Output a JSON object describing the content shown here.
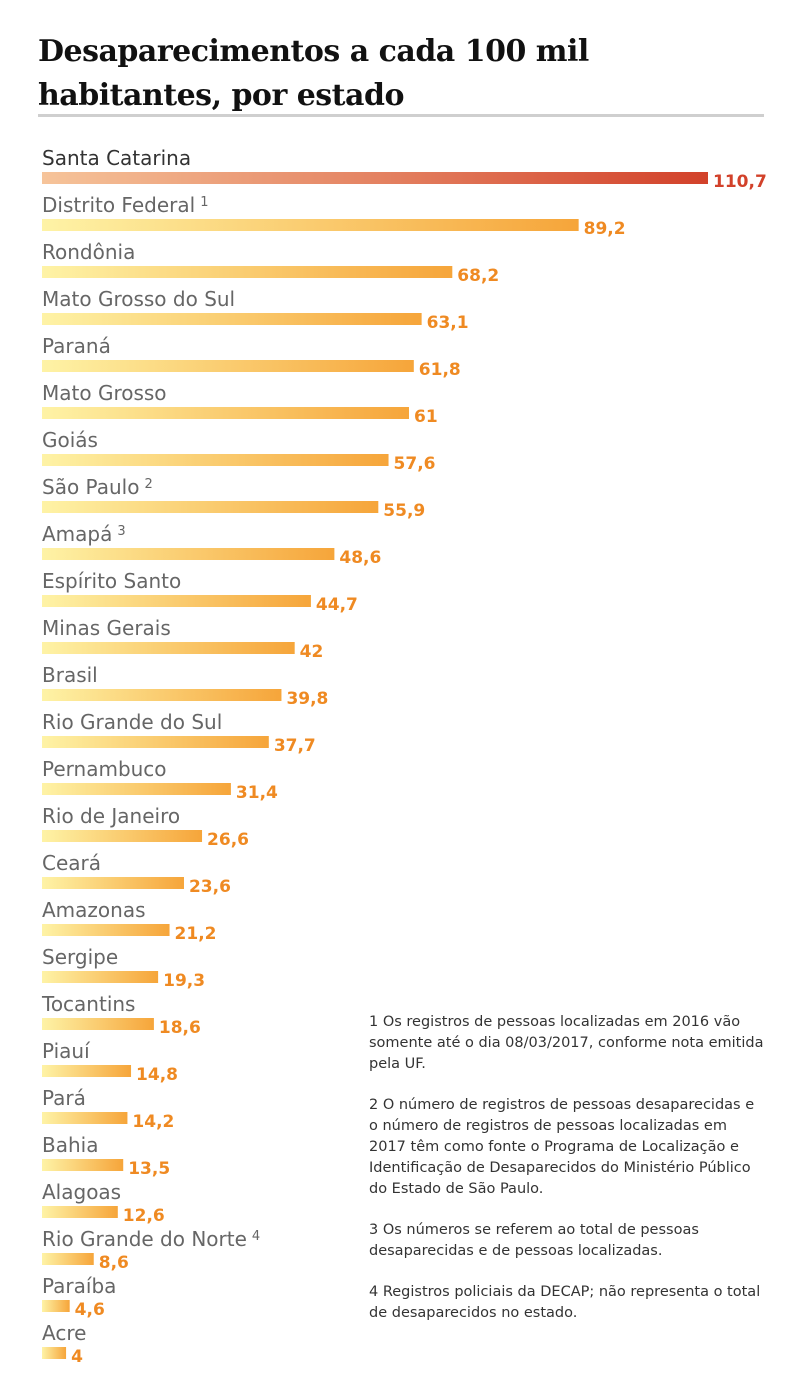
{
  "title": "Desaparecimentos a cada 100 mil habitantes, por estado",
  "colors": {
    "bar_start": "#fef3a6",
    "bar_end": "#f6a53a",
    "top_start": "#f6c49a",
    "top_end": "#d2412a",
    "value": "#ef8a22",
    "value_top": "#d2412a"
  },
  "notes": [
    "1 Os registros de pessoas localizadas em 2016 vão somente até o dia 08/03/2017, conforme nota emitida pela UF.",
    "2 O número de registros de pessoas desaparecidas e o número de registros de pessoas localizadas em 2017 têm como fonte o Programa de Localização e Identificação de Desaparecidos do Ministério Público do Estado de São Paulo.",
    "3 Os números se referem ao total de pessoas desaparecidas e de pessoas localizadas.",
    "4 Registros policiais da DECAP; não representa o total de desaparecidos no estado."
  ],
  "chart_data": {
    "type": "bar",
    "orientation": "horizontal",
    "title": "Desaparecimentos a cada 100 mil habitantes, por estado",
    "categories": [
      "Santa Catarina",
      "Distrito Federal",
      "Rondônia",
      "Mato Grosso do Sul",
      "Paraná",
      "Mato Grosso",
      "Goiás",
      "São Paulo",
      "Amapá",
      "Espírito Santo",
      "Minas Gerais",
      "Brasil",
      "Rio Grande do Sul",
      "Pernambuco",
      "Rio de Janeiro",
      "Ceará",
      "Amazonas",
      "Sergipe",
      "Tocantins",
      "Piauí",
      "Pará",
      "Bahia",
      "Alagoas",
      "Rio Grande do Norte",
      "Paraíba",
      "Acre"
    ],
    "footnote_marks": [
      "",
      "1",
      "",
      "",
      "",
      "",
      "",
      "2",
      "3",
      "",
      "",
      "",
      "",
      "",
      "",
      "",
      "",
      "",
      "",
      "",
      "",
      "",
      "",
      "4",
      "",
      ""
    ],
    "values": [
      110.7,
      89.2,
      68.2,
      63.1,
      61.8,
      61,
      57.6,
      55.9,
      48.6,
      44.7,
      42,
      39.8,
      37.7,
      31.4,
      26.6,
      23.6,
      21.2,
      19.3,
      18.6,
      14.8,
      14.2,
      13.5,
      12.6,
      8.6,
      4.6,
      4
    ],
    "value_labels": [
      "110,7",
      "89,2",
      "68,2",
      "63,1",
      "61,8",
      "61",
      "57,6",
      "55,9",
      "48,6",
      "44,7",
      "42",
      "39,8",
      "37,7",
      "31,4",
      "26,6",
      "23,6",
      "21,2",
      "19,3",
      "18,6",
      "14,8",
      "14,2",
      "13,5",
      "12,6",
      "8,6",
      "4,6",
      "4"
    ],
    "xlim": [
      0,
      110.7
    ],
    "grid": false,
    "legend": "none"
  }
}
